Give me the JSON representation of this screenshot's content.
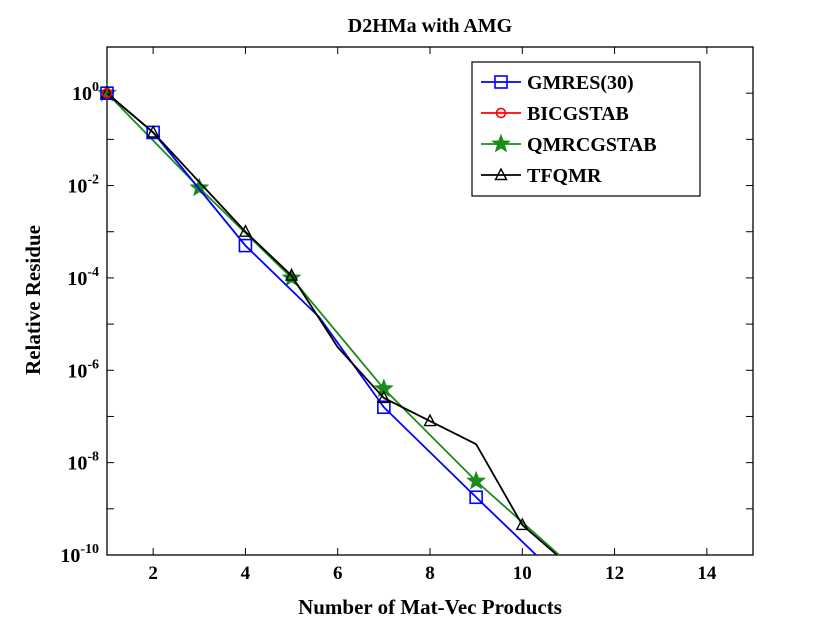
{
  "chart_data": {
    "type": "line",
    "title": "D2HMa with AMG",
    "xlabel": "Number of Mat-Vec Products",
    "ylabel": "Relative Residue",
    "xlim": [
      1,
      15
    ],
    "ylim_log10": [
      -10,
      1
    ],
    "yscale": "log",
    "x_ticks": [
      2,
      4,
      6,
      8,
      10,
      12,
      14
    ],
    "x_tick_labels": [
      "2",
      "4",
      "6",
      "8",
      "10",
      "12",
      "14"
    ],
    "y_ticks_log10": [
      -10,
      -8,
      -6,
      -4,
      -2,
      0
    ],
    "y_tick_labels": [
      "10-10",
      "10-8",
      "10-6",
      "10-4",
      "10-2",
      "100"
    ],
    "legend_position": "top-right",
    "series": [
      {
        "name": "GMRES(30)",
        "color": "#0000ff",
        "marker": "square",
        "x": [
          1,
          2,
          4,
          5.6,
          7,
          9,
          10.3
        ],
        "log10_y": [
          0,
          -0.85,
          -3.3,
          -4.85,
          -6.8,
          -8.75,
          -10
        ],
        "marker_indices": [
          0,
          1,
          2,
          4,
          5
        ]
      },
      {
        "name": "BICGSTAB",
        "color": "#ff0000",
        "marker": "circle",
        "x": [
          1
        ],
        "log10_y": [
          0
        ],
        "marker_indices": [
          0
        ]
      },
      {
        "name": "QMRCGSTAB",
        "color": "#1a8c1a",
        "marker": "star",
        "x": [
          1,
          3,
          5,
          7,
          9,
          10.8
        ],
        "log10_y": [
          0,
          -2.05,
          -4.0,
          -6.4,
          -8.4,
          -10
        ],
        "marker_indices": [
          0,
          1,
          2,
          3,
          4
        ]
      },
      {
        "name": "TFQMR",
        "color": "#000000",
        "marker": "triangle",
        "x": [
          1,
          2,
          4,
          5,
          6,
          7,
          8,
          9,
          10,
          10.75
        ],
        "log10_y": [
          0,
          -0.85,
          -3.0,
          -3.95,
          -5.5,
          -6.6,
          -7.1,
          -7.6,
          -9.35,
          -10
        ],
        "marker_indices": [
          0,
          1,
          2,
          3,
          5,
          6,
          8
        ]
      }
    ]
  }
}
